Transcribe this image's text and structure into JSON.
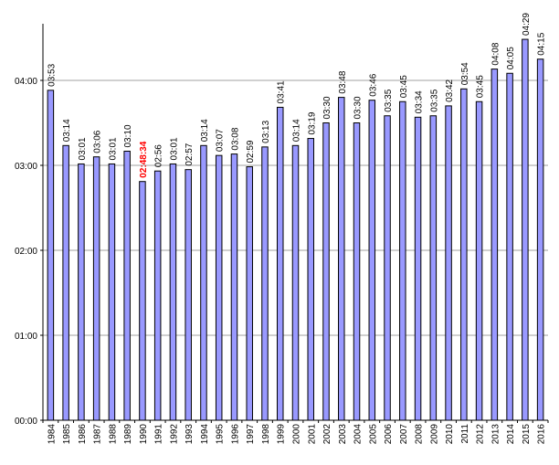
{
  "chart_data": {
    "type": "bar",
    "title": "",
    "xlabel": "",
    "ylabel": "",
    "y_unit": "minutes",
    "ylim": [
      0,
      280
    ],
    "y_ticks": [
      {
        "value": 0,
        "label": "00:00"
      },
      {
        "value": 60,
        "label": "01:00"
      },
      {
        "value": 120,
        "label": "02:00"
      },
      {
        "value": 180,
        "label": "03:00"
      },
      {
        "value": 240,
        "label": "04:00"
      }
    ],
    "grid": "horizontal",
    "bar_color": "#9999ff",
    "bar_edge_color": "#000000",
    "grid_color": "#a0a0a0",
    "highlight_color": "#ff0000",
    "categories": [
      "1984",
      "1985",
      "1986",
      "1987",
      "1988",
      "1989",
      "1990",
      "1991",
      "1992",
      "1993",
      "1994",
      "1995",
      "1996",
      "1997",
      "1998",
      "1999",
      "2000",
      "2001",
      "2002",
      "2003",
      "2004",
      "2005",
      "2006",
      "2007",
      "2008",
      "2009",
      "2010",
      "2011",
      "2012",
      "2013",
      "2014",
      "2015",
      "2016"
    ],
    "values": [
      233,
      194,
      181,
      186,
      181,
      190,
      168.57,
      176,
      181,
      177,
      194,
      187,
      188,
      179,
      193,
      221,
      194,
      199,
      210,
      228,
      210,
      226,
      215,
      225,
      214,
      215,
      222,
      234,
      225,
      248,
      245,
      269,
      255
    ],
    "value_labels": [
      "03:53",
      "03:14",
      "03:01",
      "03:06",
      "03:01",
      "03:10",
      "02:48:34",
      "02:56",
      "03:01",
      "02:57",
      "03:14",
      "03:07",
      "03:08",
      "02:59",
      "03:13",
      "03:41",
      "03:14",
      "03:19",
      "03:30",
      "03:48",
      "03:30",
      "03:46",
      "03:35",
      "03:45",
      "03:34",
      "03:35",
      "03:42",
      "03:54",
      "03:45",
      "04:08",
      "04:05",
      "04:29",
      "04:15"
    ],
    "highlight_index": 6
  }
}
